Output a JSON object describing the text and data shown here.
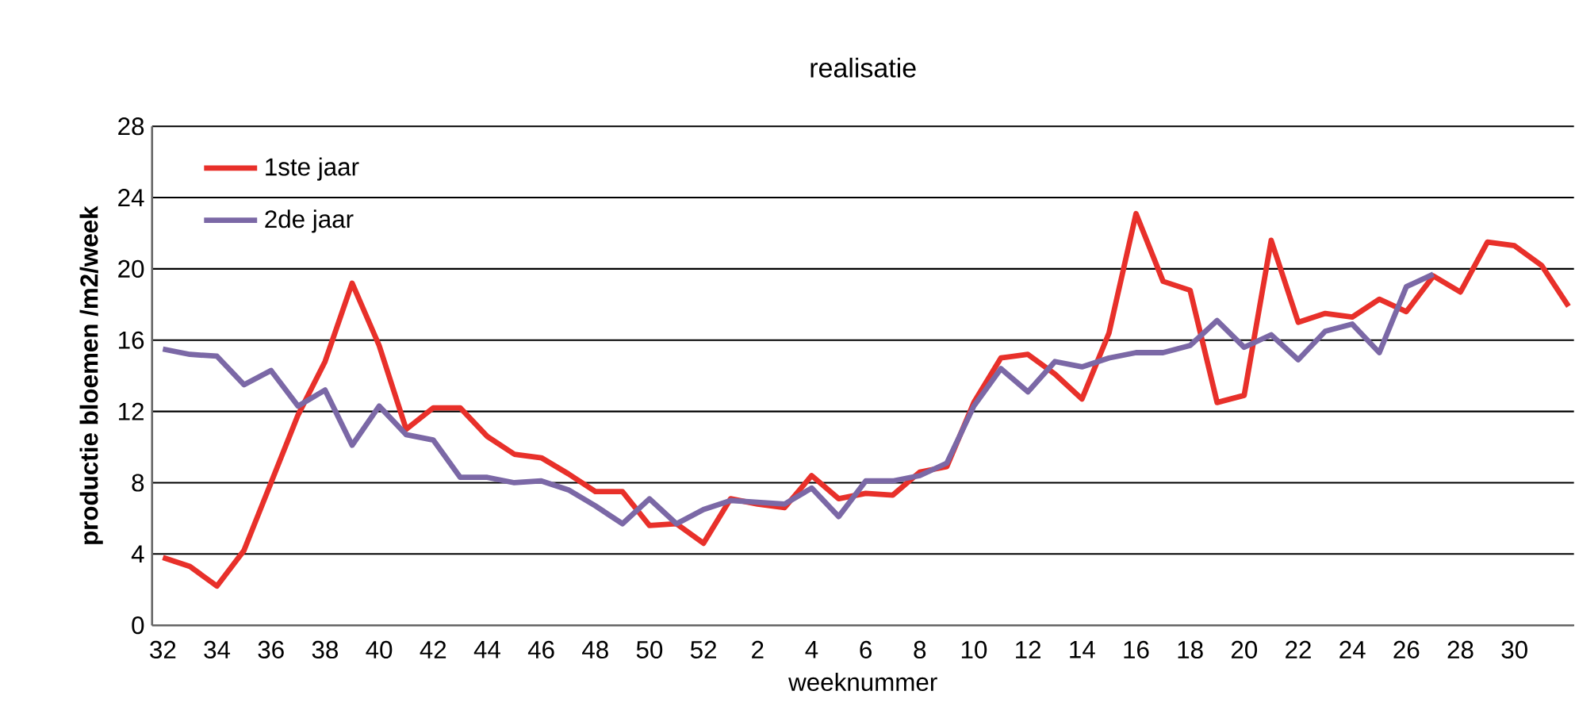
{
  "chart_data": {
    "type": "line",
    "title": "realisatie",
    "xlabel": "weeknummer",
    "ylabel": "productie bloemen /m2/week",
    "categories": [
      "32",
      null,
      "34",
      null,
      "36",
      null,
      "38",
      null,
      "40",
      null,
      "42",
      null,
      "44",
      null,
      "46",
      null,
      "48",
      null,
      "50",
      null,
      "52",
      null,
      "2",
      null,
      "4",
      null,
      "6",
      null,
      "8",
      null,
      "10",
      null,
      "12",
      null,
      "14",
      null,
      "16",
      null,
      "18",
      null,
      "20",
      null,
      "22",
      null,
      "24",
      null,
      "26",
      null,
      "28",
      null,
      "30",
      null,
      null
    ],
    "series": [
      {
        "name": "1ste jaar",
        "color": "#e8302a",
        "values": [
          3.8,
          3.3,
          2.2,
          4.2,
          8.0,
          11.8,
          14.8,
          19.2,
          15.7,
          11.0,
          12.2,
          12.2,
          10.6,
          9.6,
          9.4,
          8.5,
          7.5,
          7.5,
          5.6,
          5.7,
          4.6,
          7.1,
          6.8,
          6.6,
          8.4,
          7.1,
          7.4,
          7.3,
          8.6,
          8.9,
          12.5,
          15.0,
          15.2,
          14.1,
          12.7,
          16.4,
          23.1,
          19.3,
          18.8,
          12.5,
          12.9,
          21.6,
          17.0,
          17.5,
          17.3,
          18.3,
          17.6,
          19.6,
          18.7,
          21.5,
          21.3,
          20.2,
          17.9
        ]
      },
      {
        "name": "2de jaar",
        "color": "#7b68a6",
        "values": [
          15.5,
          15.2,
          15.1,
          13.5,
          14.3,
          12.3,
          13.2,
          10.1,
          12.3,
          10.7,
          10.4,
          8.3,
          8.3,
          8.0,
          8.1,
          7.6,
          6.7,
          5.7,
          7.1,
          5.7,
          6.5,
          7.0,
          6.9,
          6.8,
          7.7,
          6.1,
          8.1,
          8.1,
          8.4,
          9.1,
          12.3,
          14.4,
          13.1,
          14.8,
          14.5,
          15.0,
          15.3,
          15.3,
          15.7,
          17.1,
          15.6,
          16.3,
          14.9,
          16.5,
          16.9,
          15.3,
          19.0,
          19.7,
          null,
          null,
          null,
          null,
          null
        ]
      }
    ],
    "ylim": [
      0,
      28
    ],
    "yticks": [
      0,
      4,
      8,
      12,
      16,
      20,
      24,
      28
    ],
    "grid": "y",
    "legend": "top left",
    "marker": "none",
    "line_style": "solid"
  }
}
